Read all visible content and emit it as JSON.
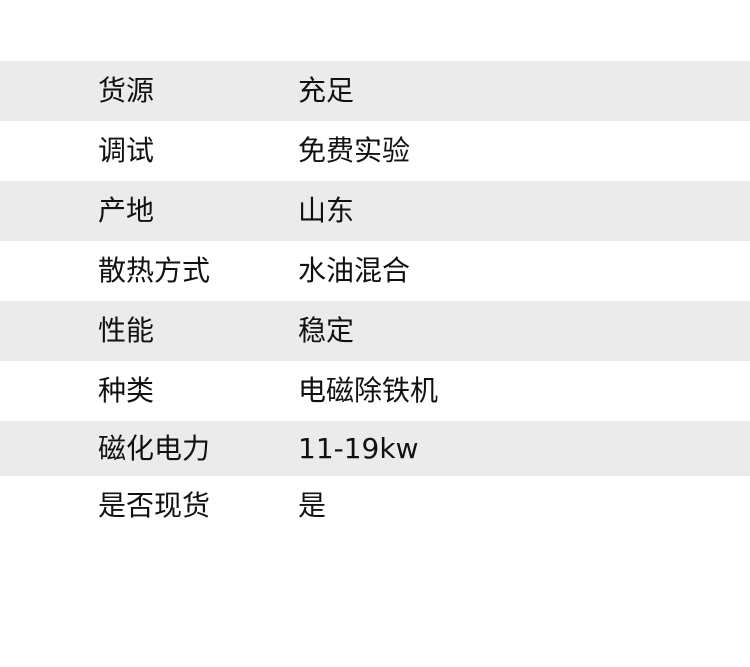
{
  "table": {
    "rows": [
      {
        "label": "货源",
        "value": "充足"
      },
      {
        "label": "调试",
        "value": "免费实验"
      },
      {
        "label": "产地",
        "value": "山东"
      },
      {
        "label": "散热方式",
        "value": "水油混合"
      },
      {
        "label": "性能",
        "value": "稳定"
      },
      {
        "label": "种类",
        "value": "电磁除铁机"
      },
      {
        "label": "磁化电力",
        "value": "11-19kw"
      },
      {
        "label": "是否现货",
        "value": "是"
      }
    ]
  },
  "colors": {
    "row_alt_bg": "#ebebeb",
    "row_bg": "#ffffff",
    "text": "#111111"
  }
}
